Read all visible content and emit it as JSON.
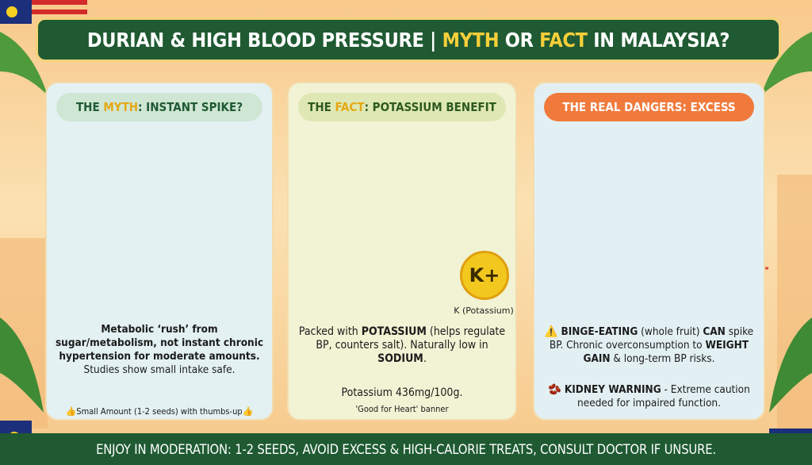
{
  "header": {
    "title": [
      "DURIAN & HIGH BLOOD PRESSURE | ",
      "MYTH",
      " OR ",
      "FACT",
      " IN MALAYSIA?"
    ]
  },
  "panels": [
    {
      "heading": [
        "THE ",
        "MYTH",
        ": INSTANT SPIKE?"
      ],
      "body": [
        "Metabolic ‘rush’ from sugar/metabolism, not instant chronic hypertension for moderate amounts.",
        "Studies show small intake safe."
      ],
      "note": "Small Amount (1-2 seeds) with thumbs-up"
    },
    {
      "heading": [
        "THE ",
        "FACT",
        ": POTASSIUM BENEFIT"
      ],
      "badge": "K+",
      "badge_label": "K (Potassium)",
      "body": [
        "Packed with ",
        "POTASSIUM",
        " (helps regulate BP, counters salt). Naturally low in ",
        "SODIUM",
        "."
      ],
      "fact": "Potassium 436mg/100g.",
      "note": "'Good for Heart' banner"
    },
    {
      "heading": [
        "THE REAL DANGERS: EXCESS"
      ],
      "body": [
        "BINGE-EATING",
        " (whole fruit) ",
        "CAN",
        " spike BP. Chronic overconsumption to ",
        "WEIGHT GAIN",
        " & long-term BP risks."
      ],
      "warning": [
        "KIDNEY WARNING",
        " - Extreme caution needed for impaired function."
      ]
    }
  ],
  "footer": {
    "text": "ENJOY IN MODERATION: 1-2 SEEDS, AVOID EXCESS & HIGH-CALORIE TREATS, CONSULT DOCTOR IF UNSURE."
  }
}
